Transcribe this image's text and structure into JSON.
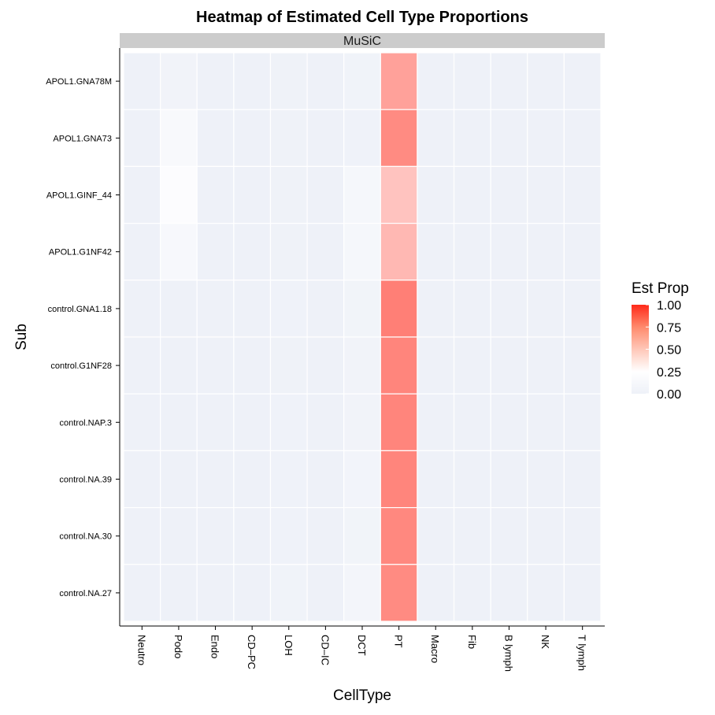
{
  "chart_data": {
    "type": "heatmap",
    "title": "Heatmap of Estimated Cell Type Proportions",
    "facet": "MuSiC",
    "xlabel": "CellType",
    "ylabel": "Sub",
    "x_categories": [
      "Neutro",
      "Podo",
      "Endo",
      "CD–PC",
      "LOH",
      "CD–IC",
      "DCT",
      "PT",
      "Macro",
      "Fib",
      "B lymph",
      "NK",
      "T lymph"
    ],
    "y_categories": [
      "APOL1.GNA78M",
      "APOL1.GNA73",
      "APOL1.GINF_44",
      "APOL1.G1NF42",
      "control.GNA1.18",
      "control.G1NF28",
      "control.NAP.3",
      "control.NA.39",
      "control.NA.30",
      "control.NA.27"
    ],
    "values": [
      [
        0.0,
        0.04,
        0.0,
        0.0,
        0.01,
        0.0,
        0.03,
        0.58,
        0.0,
        0.0,
        0.0,
        0.0,
        0.0
      ],
      [
        0.0,
        0.14,
        0.0,
        0.0,
        0.01,
        0.0,
        0.02,
        0.66,
        0.0,
        0.0,
        0.0,
        0.0,
        0.0
      ],
      [
        0.0,
        0.2,
        0.0,
        0.0,
        0.01,
        0.0,
        0.1,
        0.46,
        0.0,
        0.0,
        0.0,
        0.0,
        0.0
      ],
      [
        0.0,
        0.13,
        0.0,
        0.0,
        0.01,
        0.0,
        0.1,
        0.5,
        0.0,
        0.0,
        0.0,
        0.0,
        0.0
      ],
      [
        0.0,
        0.0,
        0.0,
        0.0,
        0.02,
        0.0,
        0.05,
        0.7,
        0.0,
        0.0,
        0.0,
        0.0,
        0.0
      ],
      [
        0.0,
        0.0,
        0.0,
        0.0,
        0.01,
        0.0,
        0.04,
        0.68,
        0.0,
        0.0,
        0.0,
        0.0,
        0.0
      ],
      [
        0.0,
        0.0,
        0.0,
        0.0,
        0.02,
        0.0,
        0.04,
        0.68,
        0.0,
        0.0,
        0.0,
        0.0,
        0.0
      ],
      [
        0.0,
        0.0,
        0.0,
        0.0,
        0.02,
        0.0,
        0.06,
        0.68,
        0.0,
        0.0,
        0.0,
        0.0,
        0.0
      ],
      [
        0.0,
        0.0,
        0.0,
        0.0,
        0.02,
        0.0,
        0.05,
        0.67,
        0.0,
        0.0,
        0.0,
        0.0,
        0.0
      ],
      [
        0.0,
        0.0,
        0.0,
        0.0,
        0.03,
        0.0,
        0.07,
        0.66,
        0.0,
        0.0,
        0.0,
        0.0,
        0.0
      ]
    ],
    "legend": {
      "title": "Est Prop",
      "ticks": [
        1.0,
        0.75,
        0.5,
        0.25,
        0.0
      ],
      "tick_labels": [
        "1.00",
        "0.75",
        "0.50",
        "0.25",
        "0.00"
      ],
      "range": [
        0,
        1
      ],
      "placement": "right"
    },
    "colors": {
      "low": "#eef1f8",
      "mid": "#ffffff",
      "high": "#ff2a1a",
      "strip": "#cccccc",
      "grid": "#ffffff"
    }
  }
}
